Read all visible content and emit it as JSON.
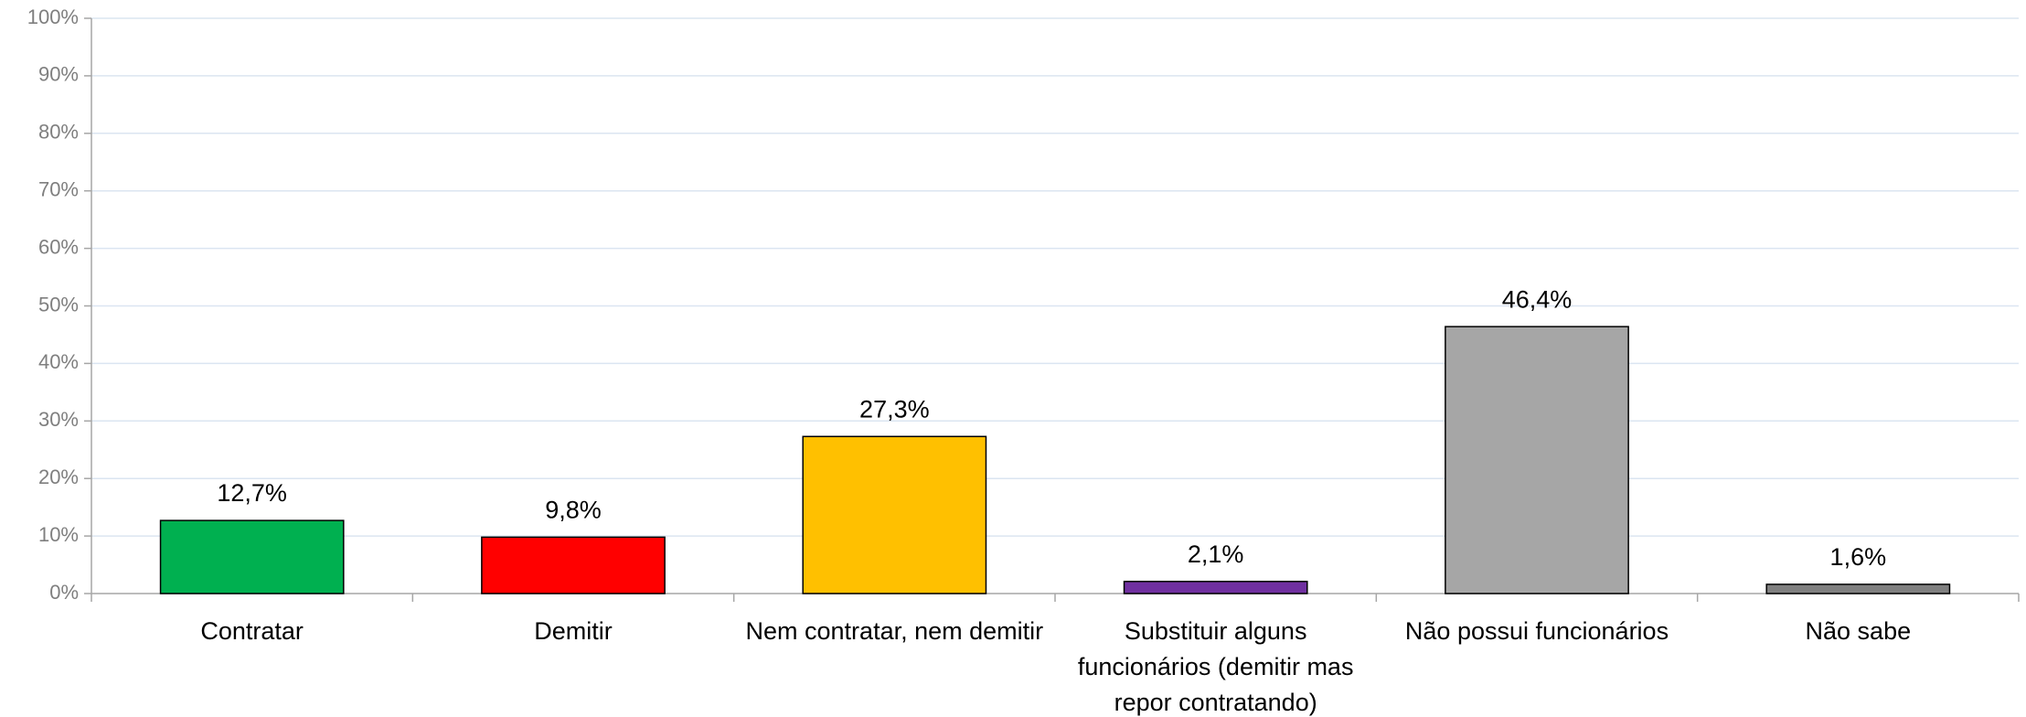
{
  "chart_data": {
    "type": "bar",
    "categories": [
      "Contratar",
      "Demitir",
      "Nem contratar, nem demitir",
      "Substituir alguns funcionários (demitir mas repor contratando)",
      "Não possui funcionários",
      "Não sabe"
    ],
    "values": [
      12.7,
      9.8,
      27.3,
      2.1,
      46.4,
      1.6
    ],
    "value_labels": [
      "12,7%",
      "9,8%",
      "27,3%",
      "2,1%",
      "46,4%",
      "1,6%"
    ],
    "colors": [
      "#00b050",
      "#ff0000",
      "#ffc000",
      "#7030a0",
      "#a6a6a6",
      "#808080"
    ],
    "ylim": [
      0,
      100
    ],
    "yticks": [
      {
        "value": 0,
        "label": "0%"
      },
      {
        "value": 10,
        "label": "10%"
      },
      {
        "value": 20,
        "label": "20%"
      },
      {
        "value": 30,
        "label": "30%"
      },
      {
        "value": 40,
        "label": "40%"
      },
      {
        "value": 50,
        "label": "50%"
      },
      {
        "value": 60,
        "label": "60%"
      },
      {
        "value": 70,
        "label": "70%"
      },
      {
        "value": 80,
        "label": "80%"
      },
      {
        "value": 90,
        "label": "90%"
      },
      {
        "value": 100,
        "label": "100%"
      }
    ],
    "grid": true
  }
}
